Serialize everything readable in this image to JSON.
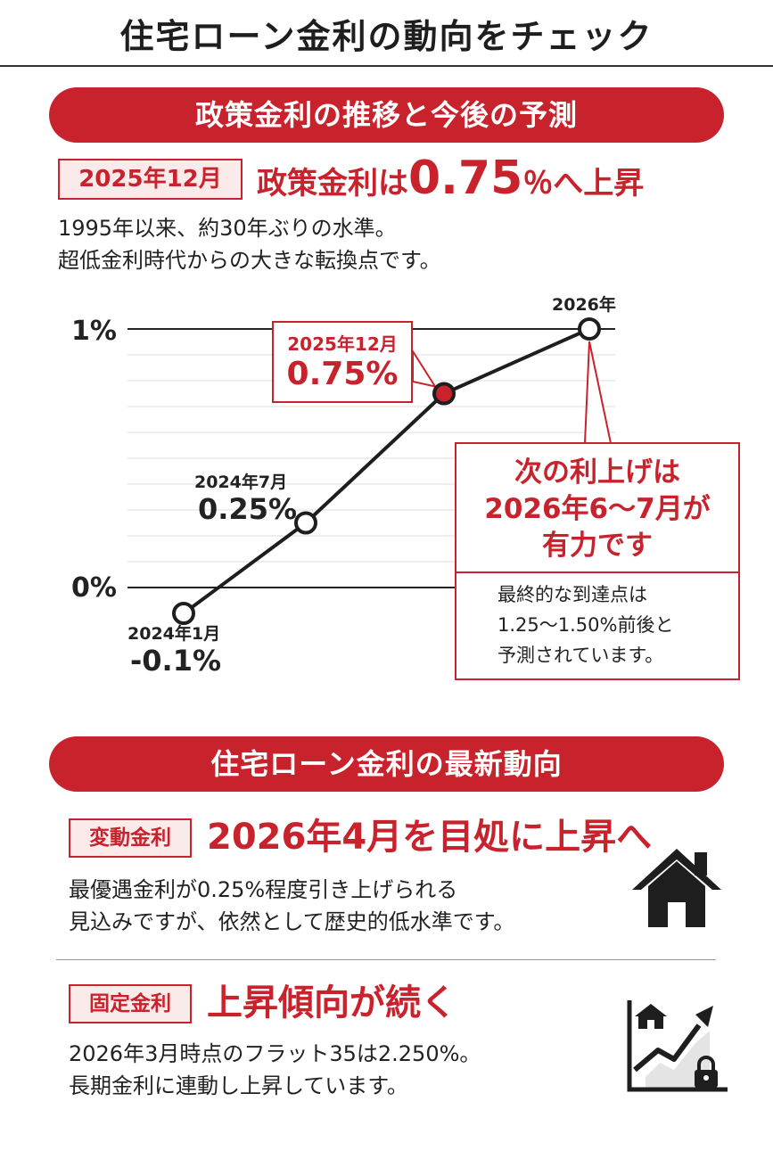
{
  "page_title": "住宅ローン金利の動向をチェック",
  "section1": {
    "banner": "政策金利の推移と今後の予測",
    "date_tag": "2025年12月",
    "headline_pre": "政策金利は",
    "headline_value": "0.75",
    "headline_post": "％へ上昇",
    "description": "1995年以来、約30年ぶりの水準。\n超低金利時代からの大きな転換点です。"
  },
  "chart_data": {
    "type": "line",
    "title": "",
    "xlabel": "",
    "ylabel": "",
    "y_tick_labels": [
      "1%",
      "0%"
    ],
    "ylim": [
      -0.1,
      1.0
    ],
    "grid": true,
    "series": [
      {
        "points": [
          {
            "x": "2024年1月",
            "y": -0.1,
            "label": "-0.1%"
          },
          {
            "x": "2024年7月",
            "y": 0.25,
            "label": "0.25%"
          },
          {
            "x": "2025年12月",
            "y": 0.75,
            "label": "0.75%"
          },
          {
            "x": "2026年",
            "y": 1.0,
            "label": ""
          }
        ]
      }
    ],
    "highlight_point": "2025年12月",
    "annotation": {
      "headline": "次の利上げは\n2026年6〜7月が\n有力です",
      "body": "最終的な到達点は\n1.25〜1.50%前後と\n予測されています。"
    }
  },
  "section2": {
    "banner": "住宅ローン金利の最新動向",
    "variable": {
      "tag": "変動金利",
      "headline": "2026年4月を目処に上昇へ",
      "description": "最優遇金利が0.25%程度引き上げられる\n見込みですが、依然として歴史的低水準です。",
      "icon": "house-icon"
    },
    "fixed": {
      "tag": "固定金利",
      "headline": "上昇傾向が続く",
      "description": "2026年3月時点のフラット35は2.250%。\n長期金利に連動し上昇しています。",
      "icon": "rising-chart-house-lock-icon"
    }
  },
  "colors": {
    "accent": "#c8232c",
    "text": "#222222",
    "grid": "#dddddd"
  }
}
